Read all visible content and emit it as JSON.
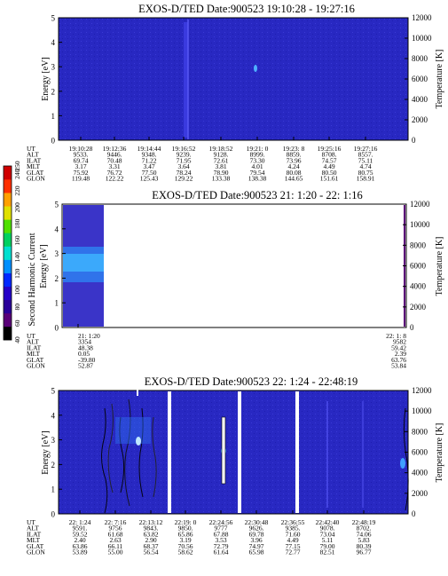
{
  "colorbar": {
    "label": "Second Harmonic Current",
    "ticks": [
      "40",
      "60",
      "80",
      "100",
      "120",
      "140",
      "160",
      "180",
      "200",
      "220",
      "240",
      "250"
    ],
    "colors": [
      "#000000",
      "#5a0078",
      "#2a0099",
      "#2400c8",
      "#0028ff",
      "#0090ff",
      "#00e0d0",
      "#00d060",
      "#50e000",
      "#e0e000",
      "#ffa000",
      "#ff3000",
      "#d00000"
    ]
  },
  "chart_data": [
    {
      "type": "heatmap",
      "title": "EXOS-D/TED   Date:900523  19:10:28 - 19:27:16",
      "ylabel": "Energy [eV]",
      "ylim": [
        0,
        5
      ],
      "y_ticks": [
        "0",
        "1",
        "2",
        "3",
        "4",
        "5"
      ],
      "ylabel_right": "Temperature [K]",
      "y2lim": [
        0,
        12000
      ],
      "y2_ticks": [
        "0",
        "2000",
        "4000",
        "6000",
        "8000",
        "10000",
        "12000"
      ],
      "rows": [
        {
          "label": "UT",
          "values": [
            "19:10:28",
            "19:12:36",
            "19:14:44",
            "19:16:52",
            "19:18:52",
            "19:21: 0",
            "19:23: 8",
            "19:25:16",
            "19:27:16"
          ]
        },
        {
          "label": "ALT",
          "values": [
            "9533.",
            "9446.",
            "9348.",
            "9239.",
            "9128.",
            "8999.",
            "8859.",
            "8708.",
            "8557."
          ]
        },
        {
          "label": "ILAT",
          "values": [
            "69.74",
            "70.48",
            "71.22",
            "71.95",
            "72.61",
            "73.30",
            "73.96",
            "74.57",
            "75.11"
          ]
        },
        {
          "label": "MLT",
          "values": [
            "3.17",
            "3.31",
            "3.47",
            "3.64",
            "3.81",
            "4.01",
            "4.24",
            "4.49",
            "4.74"
          ]
        },
        {
          "label": "GLAT",
          "values": [
            "75.92",
            "76.72",
            "77.50",
            "78.24",
            "78.90",
            "79.54",
            "80.08",
            "80.50",
            "80.75"
          ]
        },
        {
          "label": "GLON",
          "values": [
            "119.48",
            "122.22",
            "125.43",
            "129.22",
            "133.38",
            "138.38",
            "144.65",
            "151.61",
            "158.91"
          ]
        }
      ]
    },
    {
      "type": "heatmap",
      "title": "EXOS-D/TED   Date:900523  21: 1:20 - 22: 1:16",
      "ylabel": "Energy [eV]",
      "ylim": [
        0,
        5
      ],
      "y_ticks": [
        "0",
        "1",
        "2",
        "3",
        "4",
        "5"
      ],
      "ylabel_right": "Temperature [K]",
      "y2lim": [
        0,
        12000
      ],
      "y2_ticks": [
        "0",
        "2000",
        "4000",
        "6000",
        "8000",
        "10000",
        "12000"
      ],
      "rows": [
        {
          "label": "UT",
          "values": [
            "21: 1:20",
            "22: 1: 8"
          ]
        },
        {
          "label": "ALT",
          "values": [
            "3354",
            "9582"
          ]
        },
        {
          "label": "ILAT",
          "values": [
            "48.38",
            "59.42"
          ]
        },
        {
          "label": "MLT",
          "values": [
            "0.05",
            "2.39"
          ]
        },
        {
          "label": "GLAT",
          "values": [
            "-39.80",
            "63.76"
          ]
        },
        {
          "label": "GLON",
          "values": [
            "52.87",
            "53.84"
          ]
        }
      ]
    },
    {
      "type": "heatmap",
      "title": "EXOS-D/TED   Date:900523  22: 1:24 - 22:48:19",
      "ylabel": "Energy [eV]",
      "ylim": [
        0,
        5
      ],
      "y_ticks": [
        "0",
        "1",
        "2",
        "3",
        "4",
        "5"
      ],
      "ylabel_right": "Temperature [K]",
      "y2lim": [
        0,
        12000
      ],
      "y2_ticks": [
        "0",
        "2000",
        "4000",
        "6000",
        "8000",
        "10000",
        "12000"
      ],
      "rows": [
        {
          "label": "UT",
          "values": [
            "22: 1:24",
            "22: 7:16",
            "22:13:12",
            "22:19: 0",
            "22:24:56",
            "22:30:48",
            "22:36:55",
            "22:42:40",
            "22:48:19"
          ]
        },
        {
          "label": "ALT",
          "values": [
            "9591.",
            "9756",
            "9843.",
            "9850.",
            "9777",
            "9626.",
            "9385.",
            "9078.",
            "8702."
          ]
        },
        {
          "label": "ILAT",
          "values": [
            "59.52",
            "61.68",
            "63.82",
            "65.86",
            "67.88",
            "69.78",
            "71.60",
            "73.04",
            "74.06"
          ]
        },
        {
          "label": "MLT",
          "values": [
            "2.40",
            "2.63",
            "2.90",
            "3.19",
            "3.53",
            "3.96",
            "4.49",
            "5.11",
            "5.83"
          ]
        },
        {
          "label": "GLAT",
          "values": [
            "63.86",
            "66.11",
            "68.37",
            "70.56",
            "72.79",
            "74.97",
            "77.15",
            "79.00",
            "80.39"
          ]
        },
        {
          "label": "GLON",
          "values": [
            "53.89",
            "55.00",
            "56.54",
            "58.62",
            "61.64",
            "65.98",
            "72.77",
            "82.51",
            "96.77"
          ]
        }
      ]
    }
  ]
}
